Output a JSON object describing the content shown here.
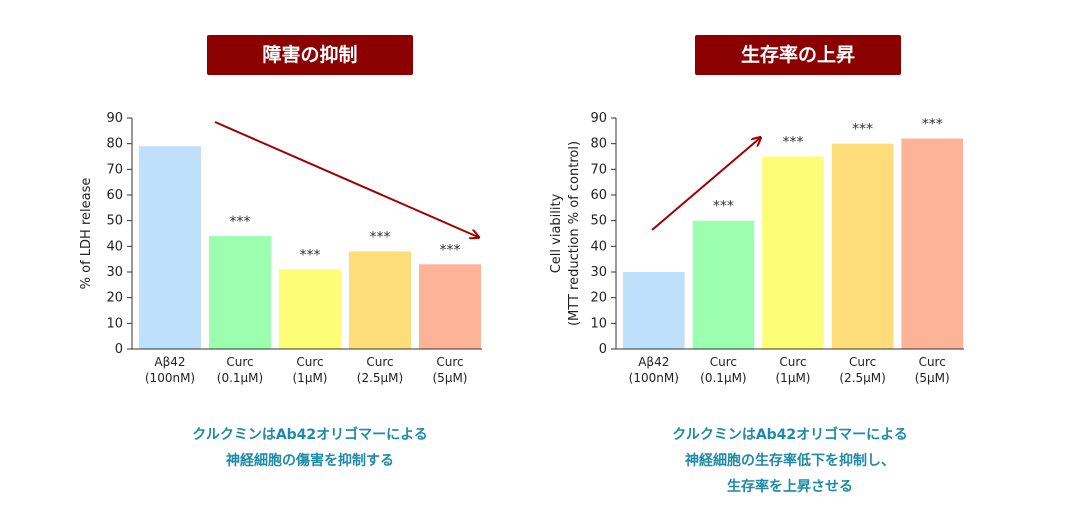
{
  "chart_data": [
    {
      "type": "bar",
      "title": "障害の抑制",
      "ylabel": "% of LDH release",
      "ylabel_lines": [
        "% of LDH release"
      ],
      "ylim": [
        0,
        90
      ],
      "yticks": [
        0,
        10,
        20,
        30,
        40,
        50,
        60,
        70,
        80,
        90
      ],
      "categories": [
        [
          "Aβ42",
          "(100nM)"
        ],
        [
          "Curc",
          "(0.1μM)"
        ],
        [
          "Curc",
          "(1μM)"
        ],
        [
          "Curc",
          "(2.5μM)"
        ],
        [
          "Curc",
          "(5μM)"
        ]
      ],
      "values": [
        79,
        44,
        31,
        38,
        33
      ],
      "colors": [
        "#bfe0fb",
        "#9cffb0",
        "#fdfd78",
        "#fddc7a",
        "#fdb397"
      ],
      "significance": [
        "",
        "***",
        "***",
        "***",
        "***"
      ],
      "trend_arrow": "decreasing",
      "caption": [
        "クルクミンはAb42オリゴマーによる",
        "神経細胞の傷害を抑制する"
      ]
    },
    {
      "type": "bar",
      "title": "生存率の上昇",
      "ylabel": "Cell viability (MTT reduction % of control)",
      "ylabel_lines": [
        "Cell viability",
        "(MTT reduction % of control)"
      ],
      "ylim": [
        0,
        90
      ],
      "yticks": [
        0,
        10,
        20,
        30,
        40,
        50,
        60,
        70,
        80,
        90
      ],
      "categories": [
        [
          "Aβ42",
          "(100nM)"
        ],
        [
          "Curc",
          "(0.1μM)"
        ],
        [
          "Curc",
          "(1μM)"
        ],
        [
          "Curc",
          "(2.5μM)"
        ],
        [
          "Curc",
          "(5μM)"
        ]
      ],
      "values": [
        30,
        50,
        75,
        80,
        82
      ],
      "colors": [
        "#bfe0fb",
        "#9cffb0",
        "#fdfd78",
        "#fddc7a",
        "#fdb397"
      ],
      "significance": [
        "",
        "***",
        "***",
        "***",
        "***"
      ],
      "trend_arrow": "increasing",
      "caption": [
        "クルクミンはAb42オリゴマーによる",
        "神経細胞の生存率低下を抑制し、",
        "生存率を上昇させる"
      ]
    }
  ],
  "colors": {
    "accent": "#8b0000",
    "caption": "#1f8aa8",
    "axis": "#333333",
    "arrow": "#a00000"
  }
}
